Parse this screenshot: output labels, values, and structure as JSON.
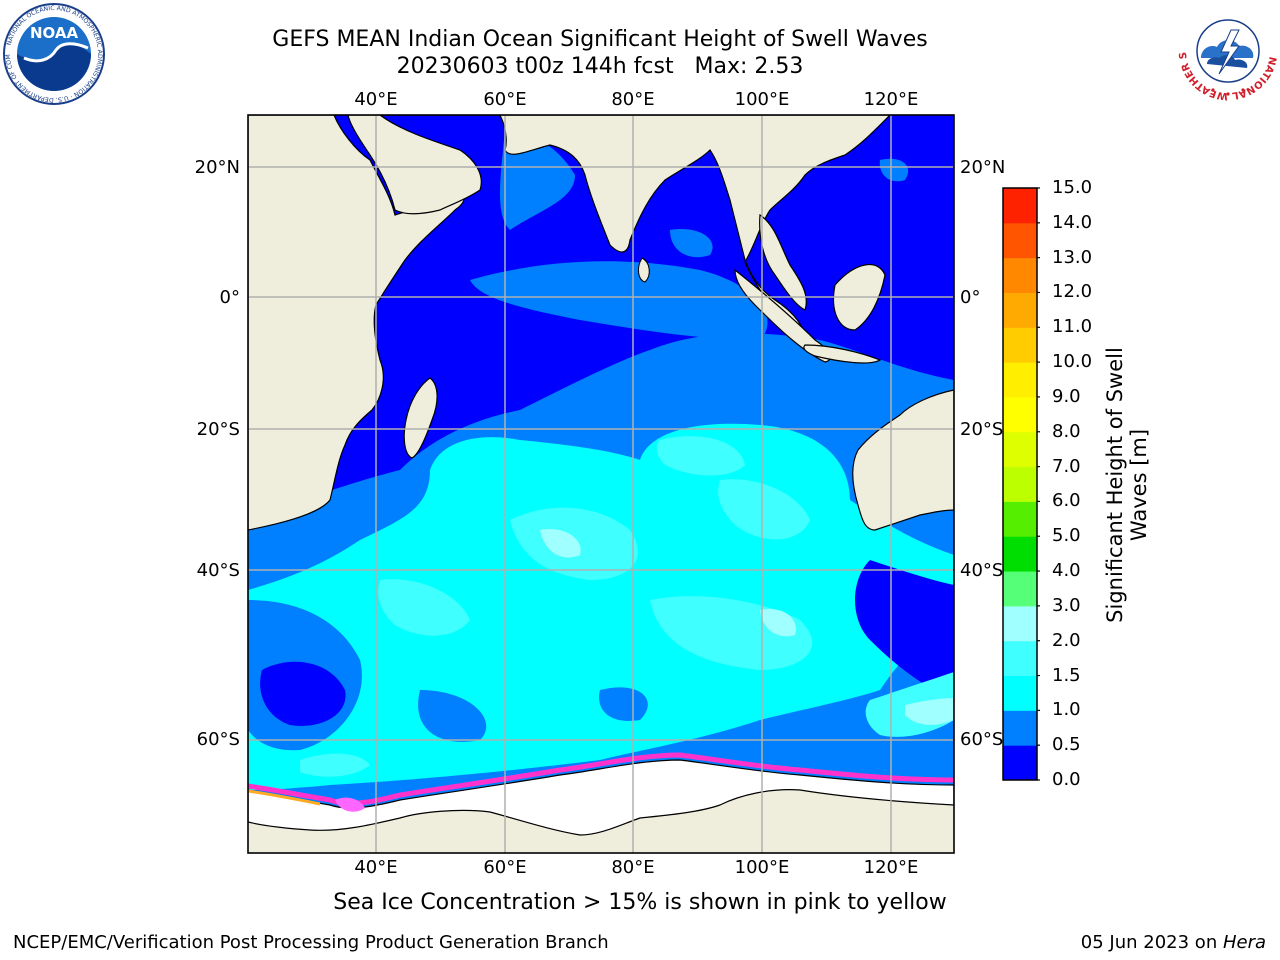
{
  "header": {
    "title_line1": "GEFS MEAN Indian Ocean Significant Height of Swell Waves",
    "title_line2": "20230603 t00z 144h fcst   Max: 2.53"
  },
  "logos": {
    "left": {
      "name": "NOAA",
      "text": "NOAA",
      "ring_text": "NATIONAL OCEANIC AND ATMOSPHERIC ADMINISTRATION · U.S. DEPARTMENT OF COMMERCE"
    },
    "right": {
      "name": "National Weather Service",
      "ring_text": "NATIONAL WEATHER SERVICE"
    }
  },
  "map": {
    "lon_labels": [
      "40°E",
      "60°E",
      "80°E",
      "100°E",
      "120°E"
    ],
    "lat_labels": [
      "20°N",
      "0°",
      "20°S",
      "40°S",
      "60°S"
    ],
    "colors": {
      "land": "#efeedd",
      "ice": "#ffffff",
      "ice_edge": [
        "#ff66ff",
        "#ff33cc",
        "#ffaa22",
        "#ffcc33"
      ],
      "grid": "#b0b0b0"
    }
  },
  "colorbar": {
    "title_line1": "Significant Height of Swell",
    "title_line2": "Waves [m]",
    "ticks": [
      "0.0",
      "0.5",
      "1.0",
      "1.5",
      "2.0",
      "3.0",
      "4.0",
      "5.0",
      "6.0",
      "7.0",
      "8.0",
      "9.0",
      "10.0",
      "11.0",
      "12.0",
      "13.0",
      "14.0",
      "15.0"
    ],
    "colors": [
      "#0000ff",
      "#0080ff",
      "#00ffff",
      "#40ffff",
      "#a0ffff",
      "#55ff77",
      "#00dd00",
      "#55ee00",
      "#bbff00",
      "#ddff00",
      "#ffff00",
      "#ffee00",
      "#ffcc00",
      "#ffaa00",
      "#ff8800",
      "#ff5500",
      "#ff2200"
    ]
  },
  "caption": "Sea Ice Concentration > 15% is shown in pink to yellow",
  "footer": {
    "left": "NCEP/EMC/Verification Post Processing Product Generation Branch",
    "right_date": "05 Jun 2023 on ",
    "right_host": "Hera"
  }
}
